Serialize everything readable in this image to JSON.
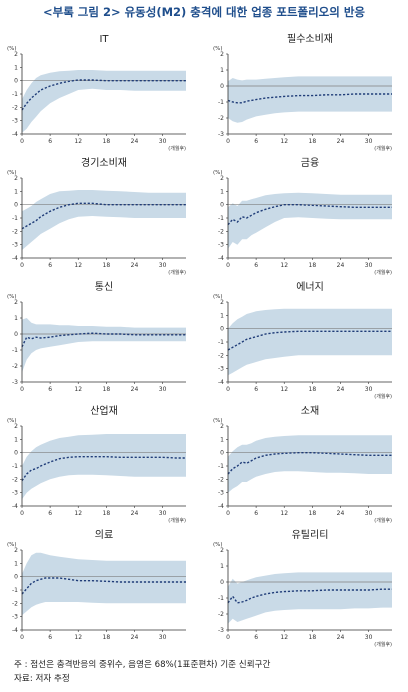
{
  "title": "<부록 그림 2> 유동성(M2) 충격에 대한 업종 포트폴리오의 반응",
  "notes": {
    "note": "주   : 점선은 충격반응의 중위수, 음영은 68%(1표준편차) 기준 신뢰구간",
    "source": "자료: 저자 추정"
  },
  "colors": {
    "band": "#c9dae7",
    "line": "#1f3c78",
    "zero": "#7f7f7f",
    "axis": "#333333"
  },
  "chart_data": [
    {
      "type": "area",
      "title": "IT",
      "unit": "(%)",
      "xlabel": "(개월후)",
      "ylim": [
        -4,
        2
      ],
      "yticks": [
        2,
        1,
        0,
        -1,
        -2,
        -3,
        -4
      ],
      "xlim": [
        0,
        35
      ],
      "xticks": [
        0,
        6,
        12,
        18,
        24,
        30
      ],
      "x": [
        0,
        1,
        2,
        3,
        4,
        6,
        8,
        10,
        12,
        15,
        18,
        21,
        24,
        27,
        30,
        33,
        35
      ],
      "series": [
        {
          "role": "median",
          "values": [
            -2.2,
            -1.7,
            -1.3,
            -1.0,
            -0.7,
            -0.4,
            -0.2,
            -0.05,
            0.05,
            0.05,
            0.0,
            0.0,
            0.0,
            0.0,
            0.0,
            0.0,
            0.0
          ]
        },
        {
          "role": "upper",
          "values": [
            -1.4,
            -0.7,
            -0.2,
            0.2,
            0.4,
            0.6,
            0.7,
            0.75,
            0.8,
            0.8,
            0.75,
            0.75,
            0.75,
            0.75,
            0.75,
            0.75,
            0.75
          ]
        },
        {
          "role": "lower",
          "values": [
            -3.9,
            -3.6,
            -3.1,
            -2.7,
            -2.3,
            -1.7,
            -1.3,
            -1.0,
            -0.7,
            -0.6,
            -0.7,
            -0.7,
            -0.75,
            -0.75,
            -0.75,
            -0.75,
            -0.75
          ]
        }
      ]
    },
    {
      "type": "area",
      "title": "필수소비재",
      "unit": "(%)",
      "xlabel": "(개월후)",
      "ylim": [
        -3,
        2
      ],
      "yticks": [
        2,
        1,
        0,
        -1,
        -2,
        -3
      ],
      "xlim": [
        0,
        35
      ],
      "xticks": [
        0,
        6,
        12,
        18,
        24,
        30
      ],
      "x": [
        0,
        1,
        2,
        3,
        4,
        6,
        8,
        10,
        12,
        15,
        18,
        21,
        24,
        27,
        30,
        33,
        35
      ],
      "series": [
        {
          "role": "median",
          "values": [
            -0.9,
            -1.0,
            -1.05,
            -1.05,
            -0.95,
            -0.85,
            -0.75,
            -0.7,
            -0.65,
            -0.6,
            -0.6,
            -0.55,
            -0.55,
            -0.5,
            -0.5,
            -0.5,
            -0.5
          ]
        },
        {
          "role": "upper",
          "values": [
            0.3,
            0.5,
            0.4,
            0.35,
            0.4,
            0.4,
            0.45,
            0.5,
            0.55,
            0.6,
            0.6,
            0.6,
            0.6,
            0.6,
            0.6,
            0.6,
            0.6
          ]
        },
        {
          "role": "lower",
          "values": [
            -2.0,
            -2.2,
            -2.3,
            -2.25,
            -2.1,
            -1.9,
            -1.8,
            -1.7,
            -1.65,
            -1.6,
            -1.6,
            -1.6,
            -1.6,
            -1.6,
            -1.6,
            -1.6,
            -1.6
          ]
        }
      ]
    },
    {
      "type": "area",
      "title": "경기소비재",
      "unit": "(%)",
      "xlabel": "(개월후)",
      "ylim": [
        -4,
        2
      ],
      "yticks": [
        2,
        1,
        0,
        -1,
        -2,
        -3,
        -4
      ],
      "xlim": [
        0,
        35
      ],
      "xticks": [
        0,
        6,
        12,
        18,
        24,
        30
      ],
      "x": [
        0,
        1,
        2,
        3,
        4,
        6,
        8,
        10,
        12,
        15,
        18,
        21,
        24,
        27,
        30,
        33,
        35
      ],
      "series": [
        {
          "role": "median",
          "values": [
            -1.8,
            -1.6,
            -1.4,
            -1.2,
            -0.9,
            -0.5,
            -0.2,
            0.0,
            0.1,
            0.1,
            0.0,
            0.0,
            0.0,
            0.0,
            0.0,
            0.0,
            0.0
          ]
        },
        {
          "role": "upper",
          "values": [
            -0.5,
            -0.3,
            -0.1,
            0.2,
            0.4,
            0.8,
            1.0,
            1.05,
            1.1,
            1.1,
            1.05,
            1.0,
            0.95,
            0.9,
            0.9,
            0.9,
            0.9
          ]
        },
        {
          "role": "lower",
          "values": [
            -3.4,
            -3.1,
            -2.8,
            -2.5,
            -2.2,
            -1.8,
            -1.4,
            -1.1,
            -0.9,
            -0.85,
            -0.9,
            -0.95,
            -1.0,
            -1.0,
            -1.0,
            -1.0,
            -1.0
          ]
        }
      ]
    },
    {
      "type": "area",
      "title": "금융",
      "unit": "(%)",
      "xlabel": "(개월후)",
      "ylim": [
        -4,
        2
      ],
      "yticks": [
        2,
        1,
        0,
        -1,
        -2,
        -3,
        -4
      ],
      "xlim": [
        0,
        35
      ],
      "xticks": [
        0,
        6,
        12,
        18,
        24,
        30
      ],
      "x": [
        0,
        1,
        2,
        3,
        4,
        5,
        6,
        8,
        10,
        12,
        15,
        18,
        21,
        24,
        27,
        30,
        33,
        35
      ],
      "series": [
        {
          "role": "median",
          "values": [
            -1.5,
            -1.1,
            -1.3,
            -0.9,
            -1.0,
            -0.8,
            -0.6,
            -0.35,
            -0.15,
            0.0,
            0.0,
            -0.05,
            -0.1,
            -0.15,
            -0.2,
            -0.2,
            -0.2,
            -0.2
          ]
        },
        {
          "role": "upper",
          "values": [
            -0.2,
            0.1,
            -0.1,
            0.3,
            0.3,
            0.4,
            0.5,
            0.7,
            0.8,
            0.85,
            0.9,
            0.85,
            0.8,
            0.75,
            0.75,
            0.75,
            0.75,
            0.75
          ]
        },
        {
          "role": "lower",
          "values": [
            -3.3,
            -2.8,
            -3.0,
            -2.6,
            -2.6,
            -2.3,
            -2.1,
            -1.7,
            -1.3,
            -1.0,
            -0.95,
            -1.0,
            -1.05,
            -1.1,
            -1.1,
            -1.1,
            -1.1,
            -1.1
          ]
        }
      ]
    },
    {
      "type": "area",
      "title": "통신",
      "unit": "(%)",
      "xlabel": "",
      "ylim": [
        -3,
        2
      ],
      "yticks": [
        2,
        1,
        0,
        -1,
        -2,
        -3
      ],
      "xlim": [
        0,
        35
      ],
      "xticks": [
        0,
        6,
        12,
        18,
        24,
        30
      ],
      "x": [
        0,
        1,
        2,
        3,
        4,
        6,
        8,
        10,
        12,
        15,
        18,
        21,
        24,
        27,
        30,
        33,
        35
      ],
      "series": [
        {
          "role": "median",
          "values": [
            -0.8,
            -0.2,
            -0.3,
            -0.2,
            -0.25,
            -0.2,
            -0.1,
            -0.05,
            0.0,
            0.05,
            0.0,
            0.0,
            -0.05,
            -0.05,
            -0.05,
            -0.05,
            -0.05
          ]
        },
        {
          "role": "upper",
          "values": [
            0.9,
            1.0,
            0.7,
            0.6,
            0.6,
            0.6,
            0.55,
            0.55,
            0.5,
            0.5,
            0.45,
            0.45,
            0.4,
            0.4,
            0.4,
            0.4,
            0.4
          ]
        },
        {
          "role": "lower",
          "values": [
            -2.4,
            -1.6,
            -1.2,
            -1.0,
            -0.9,
            -0.8,
            -0.7,
            -0.6,
            -0.5,
            -0.45,
            -0.45,
            -0.45,
            -0.45,
            -0.45,
            -0.45,
            -0.45,
            -0.45
          ]
        }
      ]
    },
    {
      "type": "area",
      "title": "에너지",
      "unit": "(%)",
      "xlabel": "(개월후)",
      "ylim": [
        -4,
        2
      ],
      "yticks": [
        2,
        1,
        0,
        -1,
        -2,
        -3,
        -4
      ],
      "xlim": [
        0,
        35
      ],
      "xticks": [
        0,
        6,
        12,
        18,
        24,
        30
      ],
      "x": [
        0,
        1,
        2,
        3,
        4,
        6,
        8,
        10,
        12,
        15,
        18,
        21,
        24,
        27,
        30,
        33,
        35
      ],
      "series": [
        {
          "role": "median",
          "values": [
            -1.6,
            -1.4,
            -1.2,
            -1.0,
            -0.8,
            -0.6,
            -0.4,
            -0.3,
            -0.25,
            -0.2,
            -0.2,
            -0.2,
            -0.2,
            -0.2,
            -0.2,
            -0.2,
            -0.2
          ]
        },
        {
          "role": "upper",
          "values": [
            0.0,
            0.4,
            0.7,
            0.9,
            1.1,
            1.3,
            1.4,
            1.45,
            1.5,
            1.5,
            1.5,
            1.5,
            1.5,
            1.5,
            1.5,
            1.5,
            1.5
          ]
        },
        {
          "role": "lower",
          "values": [
            -3.5,
            -3.3,
            -3.1,
            -2.9,
            -2.7,
            -2.5,
            -2.3,
            -2.2,
            -2.1,
            -2.0,
            -2.0,
            -2.0,
            -2.0,
            -2.0,
            -2.0,
            -2.0,
            -2.0
          ]
        }
      ]
    },
    {
      "type": "area",
      "title": "산업재",
      "unit": "(%)",
      "xlabel": "(개월후)",
      "ylim": [
        -4,
        2
      ],
      "yticks": [
        2,
        1,
        0,
        -1,
        -2,
        -3,
        -4
      ],
      "xlim": [
        0,
        35
      ],
      "xticks": [
        0,
        6,
        12,
        18,
        24,
        30
      ],
      "x": [
        0,
        1,
        2,
        3,
        4,
        6,
        8,
        10,
        12,
        15,
        18,
        21,
        24,
        27,
        30,
        33,
        35
      ],
      "series": [
        {
          "role": "median",
          "values": [
            -2.1,
            -1.6,
            -1.3,
            -1.2,
            -1.0,
            -0.7,
            -0.45,
            -0.35,
            -0.3,
            -0.3,
            -0.3,
            -0.35,
            -0.35,
            -0.35,
            -0.35,
            -0.4,
            -0.4
          ]
        },
        {
          "role": "upper",
          "values": [
            -1.0,
            -0.3,
            0.1,
            0.4,
            0.6,
            0.9,
            1.1,
            1.2,
            1.3,
            1.35,
            1.4,
            1.4,
            1.4,
            1.4,
            1.4,
            1.4,
            1.4
          ]
        },
        {
          "role": "lower",
          "values": [
            -3.5,
            -3.0,
            -2.7,
            -2.5,
            -2.3,
            -2.0,
            -1.8,
            -1.7,
            -1.65,
            -1.65,
            -1.7,
            -1.75,
            -1.8,
            -1.8,
            -1.8,
            -1.8,
            -1.8
          ]
        }
      ]
    },
    {
      "type": "area",
      "title": "소재",
      "unit": "(%)",
      "xlabel": "(개월후)",
      "ylim": [
        -4,
        2
      ],
      "yticks": [
        2,
        1,
        0,
        -1,
        -2,
        -3,
        -4
      ],
      "xlim": [
        0,
        35
      ],
      "xticks": [
        0,
        6,
        12,
        18,
        24,
        30
      ],
      "x": [
        0,
        1,
        2,
        3,
        4,
        5,
        6,
        8,
        10,
        12,
        15,
        18,
        21,
        24,
        27,
        30,
        33,
        35
      ],
      "series": [
        {
          "role": "median",
          "values": [
            -1.6,
            -1.2,
            -1.0,
            -0.7,
            -0.8,
            -0.6,
            -0.4,
            -0.2,
            -0.1,
            -0.05,
            0.0,
            0.0,
            -0.05,
            -0.1,
            -0.15,
            -0.2,
            -0.2,
            -0.2
          ]
        },
        {
          "role": "upper",
          "values": [
            -0.3,
            0.1,
            0.4,
            0.6,
            0.6,
            0.7,
            0.9,
            1.1,
            1.2,
            1.25,
            1.3,
            1.3,
            1.3,
            1.3,
            1.3,
            1.3,
            1.3,
            1.3
          ]
        },
        {
          "role": "lower",
          "values": [
            -3.0,
            -2.7,
            -2.5,
            -2.2,
            -2.2,
            -2.0,
            -1.8,
            -1.6,
            -1.45,
            -1.4,
            -1.4,
            -1.45,
            -1.5,
            -1.5,
            -1.55,
            -1.6,
            -1.6,
            -1.6
          ]
        }
      ]
    },
    {
      "type": "area",
      "title": "의료",
      "unit": "(%)",
      "xlabel": "",
      "ylim": [
        -4,
        2
      ],
      "yticks": [
        2,
        1,
        0,
        -1,
        -2,
        -3,
        -4
      ],
      "xlim": [
        0,
        35
      ],
      "xticks": [
        0,
        6,
        12,
        18,
        24,
        30
      ],
      "x": [
        0,
        1,
        2,
        3,
        4,
        5,
        6,
        8,
        10,
        12,
        15,
        18,
        21,
        24,
        27,
        30,
        33,
        35
      ],
      "series": [
        {
          "role": "median",
          "values": [
            -1.3,
            -0.9,
            -0.5,
            -0.3,
            -0.2,
            -0.1,
            -0.1,
            -0.1,
            -0.2,
            -0.3,
            -0.3,
            -0.35,
            -0.4,
            -0.4,
            -0.4,
            -0.4,
            -0.4,
            -0.4
          ]
        },
        {
          "role": "upper",
          "values": [
            0.2,
            1.0,
            1.6,
            1.8,
            1.8,
            1.7,
            1.6,
            1.5,
            1.4,
            1.3,
            1.25,
            1.2,
            1.2,
            1.2,
            1.2,
            1.2,
            1.2,
            1.2
          ]
        },
        {
          "role": "lower",
          "values": [
            -2.9,
            -2.6,
            -2.3,
            -2.1,
            -2.0,
            -1.9,
            -1.9,
            -1.9,
            -1.9,
            -1.9,
            -1.95,
            -2.0,
            -2.0,
            -2.0,
            -2.0,
            -2.0,
            -2.0,
            -2.0
          ]
        }
      ]
    },
    {
      "type": "area",
      "title": "유틸리티",
      "unit": "(%)",
      "xlabel": "(개월후)",
      "ylim": [
        -3,
        2
      ],
      "yticks": [
        2,
        1,
        0,
        -1,
        -2,
        -3
      ],
      "xlim": [
        0,
        35
      ],
      "xticks": [
        0,
        6,
        12,
        18,
        24,
        30
      ],
      "x": [
        0,
        1,
        2,
        3,
        4,
        5,
        6,
        8,
        10,
        12,
        15,
        18,
        21,
        24,
        27,
        30,
        33,
        35
      ],
      "series": [
        {
          "role": "median",
          "values": [
            -1.3,
            -0.9,
            -1.3,
            -1.25,
            -1.15,
            -1.0,
            -0.9,
            -0.75,
            -0.65,
            -0.6,
            -0.55,
            -0.55,
            -0.5,
            -0.5,
            -0.5,
            -0.5,
            -0.45,
            -0.45
          ]
        },
        {
          "role": "upper",
          "values": [
            -0.3,
            0.2,
            -0.1,
            0.0,
            0.1,
            0.2,
            0.3,
            0.4,
            0.5,
            0.55,
            0.6,
            0.6,
            0.6,
            0.6,
            0.6,
            0.6,
            0.6,
            0.6
          ]
        },
        {
          "role": "lower",
          "values": [
            -2.6,
            -2.3,
            -2.5,
            -2.4,
            -2.3,
            -2.2,
            -2.1,
            -1.9,
            -1.8,
            -1.75,
            -1.7,
            -1.7,
            -1.7,
            -1.7,
            -1.65,
            -1.65,
            -1.6,
            -1.6
          ]
        }
      ]
    }
  ]
}
